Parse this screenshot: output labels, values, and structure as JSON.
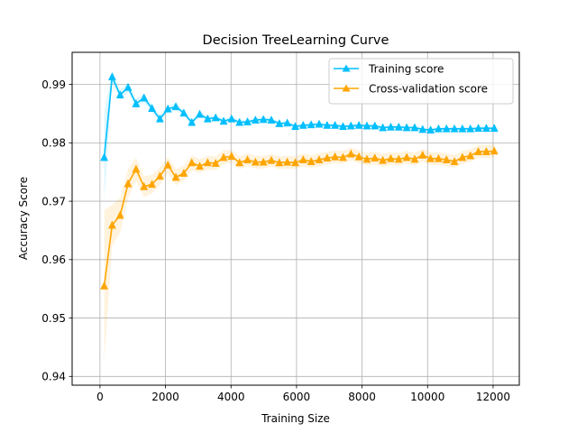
{
  "chart_data": {
    "type": "line",
    "title": "Decision TreeLearning Curve",
    "xlabel": "Training Size",
    "ylabel": "Accuracy Score",
    "xlim": [
      -850,
      12800
    ],
    "ylim": [
      0.9385,
      0.9955
    ],
    "xticks": [
      0,
      2000,
      4000,
      6000,
      8000,
      10000,
      12000
    ],
    "xtick_labels": [
      "0",
      "2000",
      "4000",
      "6000",
      "8000",
      "10000",
      "12000"
    ],
    "yticks": [
      0.94,
      0.95,
      0.96,
      0.97,
      0.98,
      0.99
    ],
    "ytick_labels": [
      "0.94",
      "0.95",
      "0.96",
      "0.97",
      "0.98",
      "0.99"
    ],
    "grid": true,
    "legend_position": "top-right",
    "x": [
      129,
      372,
      615,
      858,
      1101,
      1344,
      1587,
      1830,
      2073,
      2316,
      2559,
      2802,
      3045,
      3288,
      3531,
      3774,
      4017,
      4260,
      4503,
      4746,
      4989,
      5232,
      5475,
      5718,
      5961,
      6204,
      6447,
      6690,
      6933,
      7176,
      7419,
      7662,
      7905,
      8148,
      8391,
      8634,
      8877,
      9120,
      9363,
      9606,
      9849,
      10092,
      10335,
      10578,
      10821,
      11064,
      11307,
      11550,
      11793,
      12036
    ],
    "series": [
      {
        "name": "Training score",
        "color": "#00bfff",
        "values": [
          0.9775,
          0.9913,
          0.9882,
          0.9895,
          0.9867,
          0.9877,
          0.9859,
          0.9841,
          0.9858,
          0.9862,
          0.9851,
          0.9835,
          0.9849,
          0.9841,
          0.9843,
          0.9837,
          0.9841,
          0.9835,
          0.9836,
          0.9839,
          0.984,
          0.9839,
          0.9833,
          0.9834,
          0.9828,
          0.983,
          0.9831,
          0.9832,
          0.983,
          0.983,
          0.9828,
          0.9829,
          0.983,
          0.9829,
          0.9829,
          0.9826,
          0.9827,
          0.9827,
          0.9826,
          0.9826,
          0.9823,
          0.9822,
          0.9824,
          0.9824,
          0.9824,
          0.9824,
          0.9824,
          0.9825,
          0.9825,
          0.9825
        ],
        "std": [
          0.0075,
          0.001,
          0.0009,
          0.0008,
          0.0008,
          0.0007,
          0.0007,
          0.0006,
          0.0006,
          0.0006,
          0.0005,
          0.0005,
          0.0005,
          0.0005,
          0.0004,
          0.0004,
          0.0004,
          0.0004,
          0.0004,
          0.0004,
          0.0004,
          0.0004,
          0.0003,
          0.0003,
          0.0003,
          0.0003,
          0.0003,
          0.0003,
          0.0003,
          0.0003,
          0.0003,
          0.0003,
          0.0003,
          0.0003,
          0.0003,
          0.0003,
          0.0003,
          0.0003,
          0.0003,
          0.0003,
          0.0003,
          0.0003,
          0.0003,
          0.0003,
          0.0003,
          0.0003,
          0.0003,
          0.0003,
          0.0003,
          0.0003
        ]
      },
      {
        "name": "Cross-validation score",
        "color": "#ffa500",
        "values": [
          0.9555,
          0.9659,
          0.9676,
          0.973,
          0.9755,
          0.9725,
          0.9729,
          0.9743,
          0.9762,
          0.9741,
          0.9748,
          0.9766,
          0.976,
          0.9766,
          0.9765,
          0.9775,
          0.9777,
          0.9766,
          0.9771,
          0.9767,
          0.9767,
          0.977,
          0.9766,
          0.9767,
          0.9766,
          0.9771,
          0.9768,
          0.9771,
          0.9774,
          0.9776,
          0.9775,
          0.9781,
          0.9776,
          0.9772,
          0.9774,
          0.977,
          0.9773,
          0.9772,
          0.9775,
          0.9772,
          0.9779,
          0.9773,
          0.9773,
          0.9771,
          0.9768,
          0.9775,
          0.9778,
          0.9785,
          0.9785,
          0.9786
        ],
        "std": [
          0.013,
          0.0035,
          0.003,
          0.0025,
          0.002,
          0.0018,
          0.0016,
          0.0015,
          0.0014,
          0.0014,
          0.0013,
          0.0013,
          0.0012,
          0.0012,
          0.0012,
          0.0012,
          0.0011,
          0.0011,
          0.0011,
          0.0011,
          0.0011,
          0.0011,
          0.0011,
          0.0011,
          0.0011,
          0.0011,
          0.0011,
          0.0011,
          0.0011,
          0.0011,
          0.0011,
          0.0011,
          0.0011,
          0.0011,
          0.0011,
          0.0011,
          0.0011,
          0.0011,
          0.0011,
          0.0011,
          0.0011,
          0.0011,
          0.0011,
          0.0011,
          0.0011,
          0.0011,
          0.0011,
          0.0011,
          0.0011,
          0.0011
        ]
      }
    ]
  }
}
